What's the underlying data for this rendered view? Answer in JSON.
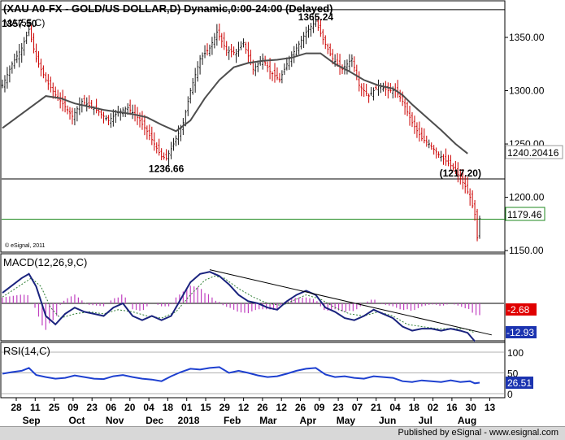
{
  "chart_data": [
    {
      "type": "candlestick",
      "panel": "price",
      "title": "(XAU A0-FX - GOLD/US DOLLAR,D) Dynamic,0:00-24:00 (Delayed)",
      "indicator_label": "MA(55,C)",
      "copyright": "© eSignal, 2011",
      "ylim": [
        1140,
        1385
      ],
      "yticks": [
        1150.0,
        1200.0,
        1250.0,
        1300.0,
        1350.0
      ],
      "ytick_labels": [
        "1150.00",
        "1200.00",
        "1250.00",
        "1300.00",
        "1350.00"
      ],
      "current_price": "1179.46",
      "ma_value": "1240.20416",
      "close_path": [
        [
          0,
          1305
        ],
        [
          4,
          1325
        ],
        [
          8,
          1340
        ],
        [
          11,
          1357.5
        ],
        [
          14,
          1330
        ],
        [
          18,
          1310
        ],
        [
          22,
          1296
        ],
        [
          26,
          1285
        ],
        [
          29,
          1276
        ],
        [
          33,
          1290
        ],
        [
          37,
          1285
        ],
        [
          40,
          1280
        ],
        [
          44,
          1272
        ],
        [
          48,
          1280
        ],
        [
          52,
          1284
        ],
        [
          56,
          1275
        ],
        [
          60,
          1262
        ],
        [
          63,
          1250
        ],
        [
          66,
          1238
        ],
        [
          68,
          1236.66
        ],
        [
          71,
          1250
        ],
        [
          75,
          1270
        ],
        [
          78,
          1300
        ],
        [
          82,
          1330
        ],
        [
          86,
          1340
        ],
        [
          89,
          1355
        ],
        [
          93,
          1338
        ],
        [
          97,
          1335
        ],
        [
          100,
          1345
        ],
        [
          104,
          1320
        ],
        [
          108,
          1330
        ],
        [
          111,
          1318
        ],
        [
          115,
          1310
        ],
        [
          119,
          1330
        ],
        [
          122,
          1340
        ],
        [
          126,
          1355
        ],
        [
          130,
          1365.24
        ],
        [
          133,
          1348
        ],
        [
          137,
          1330
        ],
        [
          141,
          1320
        ],
        [
          145,
          1330
        ],
        [
          148,
          1305
        ],
        [
          152,
          1295
        ],
        [
          156,
          1305
        ],
        [
          160,
          1300
        ],
        [
          163,
          1300
        ],
        [
          166,
          1290
        ],
        [
          170,
          1270
        ],
        [
          174,
          1255
        ],
        [
          177,
          1250
        ],
        [
          181,
          1240
        ],
        [
          185,
          1232
        ],
        [
          188,
          1225
        ],
        [
          192,
          1210
        ],
        [
          194,
          1200
        ],
        [
          196,
          1184
        ],
        [
          197,
          1162
        ],
        [
          198,
          1180
        ]
      ],
      "ma_path": [
        [
          0,
          1265
        ],
        [
          6,
          1275
        ],
        [
          12,
          1285
        ],
        [
          18,
          1295
        ],
        [
          24,
          1293
        ],
        [
          30,
          1288
        ],
        [
          36,
          1285
        ],
        [
          42,
          1282
        ],
        [
          48,
          1280
        ],
        [
          54,
          1278
        ],
        [
          60,
          1275
        ],
        [
          66,
          1268
        ],
        [
          72,
          1262
        ],
        [
          78,
          1272
        ],
        [
          84,
          1293
        ],
        [
          90,
          1310
        ],
        [
          96,
          1322
        ],
        [
          102,
          1326
        ],
        [
          108,
          1328
        ],
        [
          114,
          1329
        ],
        [
          120,
          1331
        ],
        [
          126,
          1335
        ],
        [
          132,
          1335
        ],
        [
          138,
          1325
        ],
        [
          144,
          1318
        ],
        [
          150,
          1310
        ],
        [
          156,
          1305
        ],
        [
          162,
          1302
        ],
        [
          166,
          1296
        ],
        [
          170,
          1287
        ],
        [
          176,
          1275
        ],
        [
          182,
          1263
        ],
        [
          188,
          1250
        ],
        [
          193,
          1241
        ]
      ],
      "annotations": [
        {
          "label": "1357.50",
          "x": 11,
          "y": 1357.5
        },
        {
          "label": "1365.24",
          "x": 130,
          "y": 1365.24
        },
        {
          "label": "1236.66",
          "x": 68,
          "y": 1236.66
        },
        {
          "label": "(1217.20)",
          "x": 190,
          "y": 1217.2
        }
      ],
      "hlines": [
        {
          "y": 1376,
          "color": "#000000"
        },
        {
          "y": 1217.2,
          "color": "#000000"
        },
        {
          "y": 1179.46,
          "color": "#1f8a1f"
        }
      ]
    },
    {
      "type": "line",
      "panel": "macd",
      "title": "MACD(12,26,9,C)",
      "ylim": [
        -18,
        18
      ],
      "values": [
        "-2.68",
        "-12.93"
      ],
      "zero_line": 0,
      "macd_path": [
        [
          0,
          5
        ],
        [
          8,
          12
        ],
        [
          11,
          14
        ],
        [
          14,
          8
        ],
        [
          18,
          -6
        ],
        [
          22,
          -10
        ],
        [
          26,
          -5
        ],
        [
          30,
          -2
        ],
        [
          34,
          -4
        ],
        [
          38,
          -5
        ],
        [
          42,
          -6
        ],
        [
          46,
          -2
        ],
        [
          50,
          0
        ],
        [
          54,
          -6
        ],
        [
          58,
          -8
        ],
        [
          62,
          -6
        ],
        [
          66,
          -8
        ],
        [
          70,
          -6
        ],
        [
          74,
          2
        ],
        [
          78,
          10
        ],
        [
          82,
          14
        ],
        [
          86,
          15
        ],
        [
          90,
          13
        ],
        [
          94,
          9
        ],
        [
          98,
          4
        ],
        [
          102,
          1
        ],
        [
          106,
          0
        ],
        [
          110,
          -2
        ],
        [
          114,
          -3
        ],
        [
          118,
          1
        ],
        [
          122,
          4
        ],
        [
          126,
          6
        ],
        [
          130,
          4
        ],
        [
          134,
          -2
        ],
        [
          138,
          -4
        ],
        [
          142,
          -7
        ],
        [
          146,
          -8
        ],
        [
          150,
          -6
        ],
        [
          154,
          -3
        ],
        [
          158,
          -5
        ],
        [
          162,
          -7
        ],
        [
          166,
          -11
        ],
        [
          170,
          -13
        ],
        [
          174,
          -12
        ],
        [
          178,
          -12
        ],
        [
          182,
          -13
        ],
        [
          186,
          -12
        ],
        [
          190,
          -13
        ],
        [
          193,
          -14
        ],
        [
          196,
          -18
        ]
      ],
      "signal_path": [
        [
          0,
          3
        ],
        [
          8,
          9
        ],
        [
          12,
          12
        ],
        [
          16,
          8
        ],
        [
          20,
          -2
        ],
        [
          24,
          -7
        ],
        [
          30,
          -5
        ],
        [
          36,
          -4
        ],
        [
          42,
          -5
        ],
        [
          48,
          -3
        ],
        [
          54,
          -4
        ],
        [
          60,
          -6
        ],
        [
          66,
          -7
        ],
        [
          72,
          -4
        ],
        [
          78,
          4
        ],
        [
          84,
          11
        ],
        [
          88,
          13
        ],
        [
          92,
          12
        ],
        [
          98,
          7
        ],
        [
          104,
          3
        ],
        [
          110,
          0
        ],
        [
          116,
          -1
        ],
        [
          122,
          2
        ],
        [
          126,
          4
        ],
        [
          132,
          2
        ],
        [
          138,
          -2
        ],
        [
          144,
          -5
        ],
        [
          150,
          -6
        ],
        [
          156,
          -4
        ],
        [
          162,
          -6
        ],
        [
          168,
          -10
        ],
        [
          174,
          -11
        ],
        [
          180,
          -12
        ],
        [
          186,
          -12
        ],
        [
          192,
          -12
        ],
        [
          196,
          -14
        ]
      ],
      "trendline": [
        [
          86,
          16
        ],
        [
          203,
          -15
        ]
      ]
    },
    {
      "type": "line",
      "panel": "rsi",
      "title": "RSI(14,C)",
      "ylim": [
        -2,
        108
      ],
      "yticks": [
        0,
        50,
        100
      ],
      "ytick_labels": [
        "0",
        "50",
        "100"
      ],
      "value": "26.51",
      "rsi_path": [
        [
          0,
          48
        ],
        [
          4,
          52
        ],
        [
          8,
          55
        ],
        [
          11,
          62
        ],
        [
          14,
          45
        ],
        [
          18,
          40
        ],
        [
          22,
          36
        ],
        [
          26,
          38
        ],
        [
          30,
          44
        ],
        [
          34,
          40
        ],
        [
          38,
          36
        ],
        [
          42,
          35
        ],
        [
          46,
          42
        ],
        [
          50,
          45
        ],
        [
          54,
          40
        ],
        [
          58,
          36
        ],
        [
          62,
          34
        ],
        [
          66,
          30
        ],
        [
          70,
          42
        ],
        [
          74,
          52
        ],
        [
          78,
          60
        ],
        [
          82,
          58
        ],
        [
          86,
          62
        ],
        [
          90,
          64
        ],
        [
          94,
          50
        ],
        [
          98,
          55
        ],
        [
          102,
          50
        ],
        [
          106,
          44
        ],
        [
          110,
          40
        ],
        [
          114,
          42
        ],
        [
          118,
          48
        ],
        [
          122,
          55
        ],
        [
          126,
          60
        ],
        [
          130,
          62
        ],
        [
          134,
          46
        ],
        [
          138,
          40
        ],
        [
          142,
          42
        ],
        [
          146,
          38
        ],
        [
          150,
          36
        ],
        [
          154,
          42
        ],
        [
          158,
          40
        ],
        [
          162,
          38
        ],
        [
          166,
          30
        ],
        [
          170,
          28
        ],
        [
          174,
          32
        ],
        [
          178,
          30
        ],
        [
          182,
          28
        ],
        [
          186,
          32
        ],
        [
          190,
          28
        ],
        [
          194,
          30
        ],
        [
          196,
          25
        ],
        [
          198,
          26.51
        ]
      ]
    }
  ],
  "x_axis": {
    "day_labels": [
      "28",
      "11",
      "25",
      "09",
      "23",
      "06",
      "20",
      "04",
      "18",
      "01",
      "15",
      "29",
      "12",
      "26",
      "12",
      "26",
      "09",
      "23",
      "07",
      "21",
      "04",
      "18",
      "02",
      "16",
      "30",
      "13"
    ],
    "month_labels": [
      {
        "label": "Sep",
        "day_index": 0.8
      },
      {
        "label": "Oct",
        "day_index": 3.2
      },
      {
        "label": "Nov",
        "day_index": 5.2
      },
      {
        "label": "Dec",
        "day_index": 7.3
      },
      {
        "label": "2018",
        "day_index": 9.1
      },
      {
        "label": "Feb",
        "day_index": 11.4
      },
      {
        "label": "Mar",
        "day_index": 13.3
      },
      {
        "label": "Apr",
        "day_index": 15.4
      },
      {
        "label": "May",
        "day_index": 17.4
      },
      {
        "label": "Jun",
        "day_index": 19.6
      },
      {
        "label": "Jul",
        "day_index": 21.6
      },
      {
        "label": "Aug",
        "day_index": 23.8
      }
    ]
  },
  "footer": {
    "text": "Published by eSignal - www.esignal.com"
  },
  "colors": {
    "up_candle": "#1a1a1a",
    "down_candle": "#cc0000",
    "ma": "#4d4d4d",
    "macd": "#1a237e",
    "signal": "#2e7d32",
    "histogram": "#c040c0",
    "rsi": "#1e40d0",
    "value_box": "#1b33b0",
    "value_box_red": "#e00000"
  }
}
